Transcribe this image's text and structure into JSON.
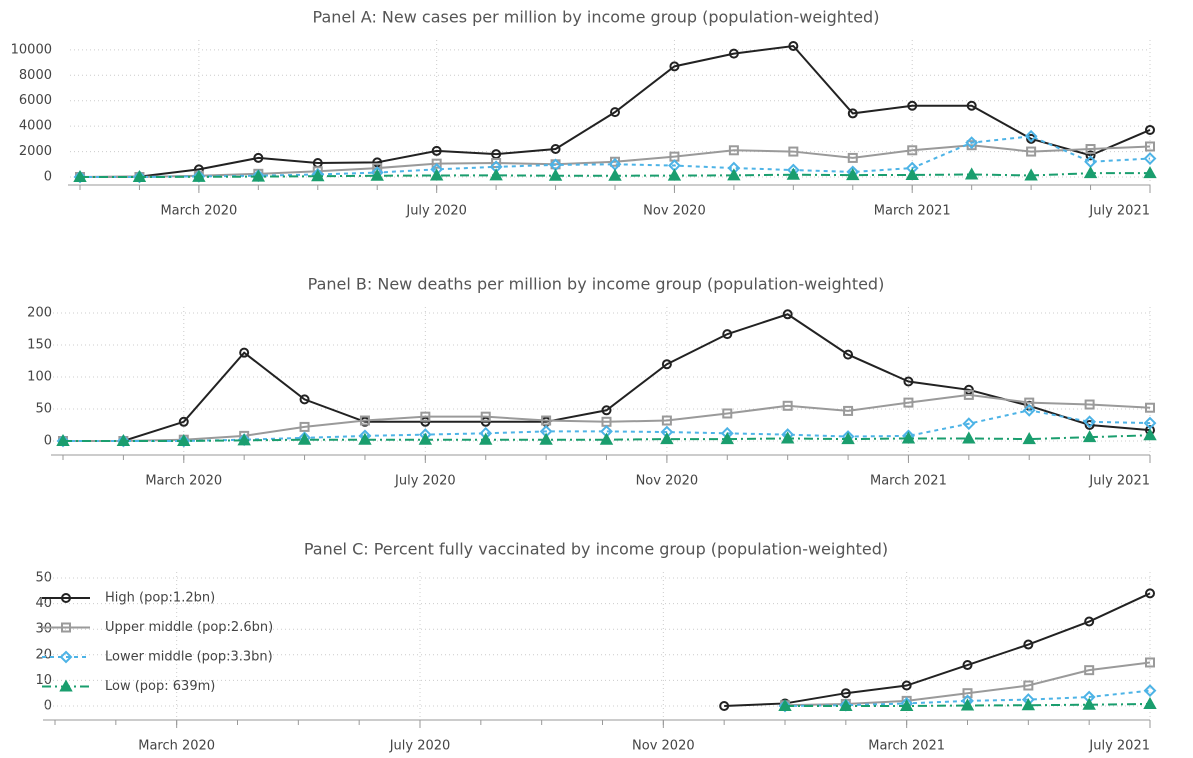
{
  "chart_data": [
    {
      "type": "line",
      "title": "Panel A: New cases per million by income group (population-weighted)",
      "x": [
        "2020-01",
        "2020-02",
        "2020-03",
        "2020-04",
        "2020-05",
        "2020-06",
        "2020-07",
        "2020-08",
        "2020-09",
        "2020-10",
        "2020-11",
        "2020-12",
        "2021-01",
        "2021-02",
        "2021-03",
        "2021-04",
        "2021-05",
        "2021-06",
        "2021-07"
      ],
      "xticks": [
        {
          "value": "2020-03",
          "label": "March 2020"
        },
        {
          "value": "2020-07",
          "label": "July 2020"
        },
        {
          "value": "2020-11",
          "label": "Nov 2020"
        },
        {
          "value": "2021-03",
          "label": "March 2021"
        },
        {
          "value": "2021-07",
          "label": "July 2021"
        }
      ],
      "ylim": [
        0,
        10300
      ],
      "yticks": [
        0,
        2000,
        4000,
        6000,
        8000,
        10000
      ],
      "grid": true,
      "series": [
        {
          "color": "#222222",
          "values": [
            0,
            30,
            600,
            1500,
            1100,
            1150,
            2050,
            1800,
            2200,
            5100,
            8700,
            9700,
            10300,
            5000,
            5600,
            5600,
            3000,
            1700,
            3700
          ]
        },
        {
          "color": "#9a9a9a",
          "values": [
            0,
            0,
            100,
            250,
            450,
            700,
            1050,
            1100,
            1000,
            1200,
            1600,
            2100,
            2000,
            1500,
            2100,
            2500,
            2000,
            2200,
            2400
          ]
        },
        {
          "color": "#4db3e6",
          "values": [
            0,
            0,
            50,
            100,
            200,
            350,
            600,
            800,
            950,
            1000,
            900,
            700,
            550,
            400,
            700,
            2700,
            3200,
            1200,
            1450
          ]
        },
        {
          "color": "#1a9e6e",
          "values": [
            0,
            0,
            10,
            30,
            60,
            100,
            120,
            130,
            100,
            100,
            110,
            130,
            180,
            150,
            160,
            200,
            120,
            300,
            300
          ]
        }
      ]
    },
    {
      "type": "line",
      "title": "Panel B: New deaths per million by income group (population-weighted)",
      "x": [
        "2020-01",
        "2020-02",
        "2020-03",
        "2020-04",
        "2020-05",
        "2020-06",
        "2020-07",
        "2020-08",
        "2020-09",
        "2020-10",
        "2020-11",
        "2020-12",
        "2021-01",
        "2021-02",
        "2021-03",
        "2021-04",
        "2021-05",
        "2021-06",
        "2021-07"
      ],
      "xticks": [
        {
          "value": "2020-03",
          "label": "March 2020"
        },
        {
          "value": "2020-07",
          "label": "July 2020"
        },
        {
          "value": "2020-11",
          "label": "Nov 2020"
        },
        {
          "value": "2021-03",
          "label": "March 2021"
        },
        {
          "value": "2021-07",
          "label": "July 2021"
        }
      ],
      "ylim": [
        0,
        200
      ],
      "yticks": [
        0,
        50,
        100,
        150,
        200
      ],
      "grid": true,
      "series": [
        {
          "color": "#222222",
          "values": [
            0,
            0,
            30,
            138,
            65,
            30,
            30,
            30,
            30,
            48,
            120,
            167,
            198,
            135,
            93,
            80,
            55,
            25,
            17
          ]
        },
        {
          "color": "#9a9a9a",
          "values": [
            0,
            0,
            2,
            8,
            22,
            32,
            38,
            38,
            32,
            30,
            32,
            43,
            55,
            47,
            60,
            72,
            60,
            57,
            52
          ]
        },
        {
          "color": "#4db3e6",
          "values": [
            0,
            0,
            0,
            2,
            5,
            8,
            10,
            12,
            15,
            15,
            14,
            12,
            10,
            7,
            8,
            27,
            48,
            30,
            28
          ]
        },
        {
          "color": "#1a9e6e",
          "values": [
            0,
            0,
            0,
            1,
            2,
            2,
            2,
            2,
            2,
            2,
            3,
            3,
            4,
            3,
            4,
            4,
            3,
            6,
            9
          ]
        }
      ]
    },
    {
      "type": "line",
      "title": "Panel C: Percent fully vaccinated by income group (population-weighted)",
      "x": [
        "2020-01",
        "2020-02",
        "2020-03",
        "2020-04",
        "2020-05",
        "2020-06",
        "2020-07",
        "2020-08",
        "2020-09",
        "2020-10",
        "2020-11",
        "2020-12",
        "2021-01",
        "2021-02",
        "2021-03",
        "2021-04",
        "2021-05",
        "2021-06",
        "2021-07"
      ],
      "xticks": [
        {
          "value": "2020-03",
          "label": "March 2020"
        },
        {
          "value": "2020-07",
          "label": "July 2020"
        },
        {
          "value": "2020-11",
          "label": "Nov 2020"
        },
        {
          "value": "2021-03",
          "label": "March 2021"
        },
        {
          "value": "2021-07",
          "label": "July 2021"
        }
      ],
      "ylim": [
        0,
        50
      ],
      "yticks": [
        0,
        10,
        20,
        30,
        40,
        50
      ],
      "grid": true,
      "legend": "upper left",
      "series": [
        {
          "name": "High (pop:1.2bn)",
          "color": "#222222",
          "values": [
            null,
            null,
            null,
            null,
            null,
            null,
            null,
            null,
            null,
            null,
            null,
            0,
            1,
            5,
            8,
            16,
            24,
            33,
            44
          ]
        },
        {
          "name": "Upper middle (pop:2.6bn)",
          "color": "#9a9a9a",
          "values": [
            null,
            null,
            null,
            null,
            null,
            null,
            null,
            null,
            null,
            null,
            null,
            null,
            0.3,
            0.8,
            2,
            5,
            8,
            14,
            17
          ]
        },
        {
          "name": "Lower middle (pop:3.3bn)",
          "color": "#4db3e6",
          "values": [
            null,
            null,
            null,
            null,
            null,
            null,
            null,
            null,
            null,
            null,
            null,
            null,
            0,
            0.3,
            1,
            2,
            2.5,
            3.5,
            6
          ]
        },
        {
          "name": "Low (pop: 639m)",
          "color": "#1a9e6e",
          "values": [
            null,
            null,
            null,
            null,
            null,
            null,
            null,
            null,
            null,
            null,
            null,
            null,
            0,
            0,
            0,
            0.2,
            0.3,
            0.5,
            0.8
          ]
        }
      ]
    }
  ]
}
